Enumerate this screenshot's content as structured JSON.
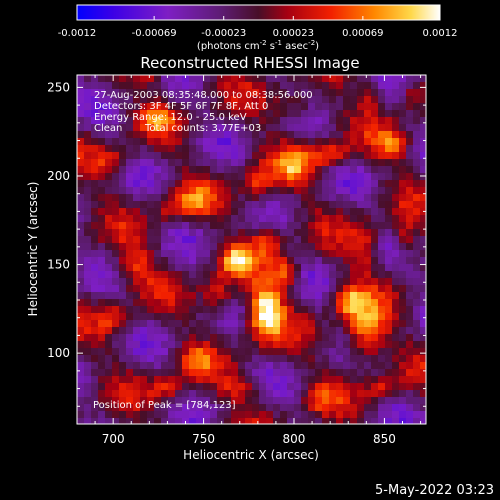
{
  "colorbar": {
    "ticks": [
      "-0.0012",
      "-0.00069",
      "-0.00023",
      "0.00023",
      "0.00069",
      "0.0012"
    ],
    "unit_label_parts": [
      "(photons cm",
      "-2",
      " s",
      "-1",
      " asec",
      "-2",
      ")"
    ],
    "colors": [
      "#0000ff",
      "#7e1ec4",
      "#5d1c72",
      "#a60012",
      "#f22000",
      "#ff8800",
      "#ffd84a",
      "#ffffff"
    ]
  },
  "chart_data": {
    "type": "heatmap",
    "title": "Reconstructed RHESSI Image",
    "xlabel": "Heliocentric X (arcsec)",
    "ylabel": "Heliocentric Y (arcsec)",
    "xlim": [
      680,
      873
    ],
    "ylim": [
      60,
      257
    ],
    "xticks": [
      700,
      750,
      800,
      850
    ],
    "yticks": [
      100,
      150,
      200,
      250
    ],
    "xtick_labels": [
      "700",
      "750",
      "800",
      "850"
    ],
    "ytick_labels": [
      "100",
      "150",
      "200",
      "250"
    ],
    "colorbar_range": [
      -0.0012,
      0.0012
    ],
    "peak": {
      "x": 784,
      "y": 123
    },
    "blobs": [
      {
        "x": 784,
        "y": 123,
        "sx": 7,
        "sy": 11,
        "amp": 1.15
      },
      {
        "x": 768,
        "y": 152,
        "sx": 6,
        "sy": 6,
        "amp": 0.75
      },
      {
        "x": 840,
        "y": 111,
        "sx": 8,
        "sy": 12,
        "amp": 0.85
      },
      {
        "x": 830,
        "y": 130,
        "sx": 6,
        "sy": 7,
        "amp": 0.7
      },
      {
        "x": 758,
        "y": 132,
        "sx": 6,
        "sy": 8,
        "amp": 0.6
      },
      {
        "x": 795,
        "y": 145,
        "sx": 6,
        "sy": 7,
        "amp": 0.6
      },
      {
        "x": 785,
        "y": 163,
        "sx": 6,
        "sy": 6,
        "amp": 0.55
      },
      {
        "x": 745,
        "y": 185,
        "sx": 7,
        "sy": 6,
        "amp": 0.55
      },
      {
        "x": 780,
        "y": 195,
        "sx": 6,
        "sy": 8,
        "amp": 0.6
      },
      {
        "x": 800,
        "y": 205,
        "sx": 7,
        "sy": 7,
        "amp": 0.55
      },
      {
        "x": 820,
        "y": 212,
        "sx": 8,
        "sy": 5,
        "amp": 0.6
      },
      {
        "x": 855,
        "y": 218,
        "sx": 7,
        "sy": 6,
        "amp": 0.55
      },
      {
        "x": 862,
        "y": 165,
        "sx": 5,
        "sy": 9,
        "amp": 0.5
      },
      {
        "x": 712,
        "y": 150,
        "sx": 8,
        "sy": 9,
        "amp": 0.5
      },
      {
        "x": 700,
        "y": 120,
        "sx": 6,
        "sy": 6,
        "amp": 0.45
      },
      {
        "x": 730,
        "y": 80,
        "sx": 7,
        "sy": 5,
        "amp": 0.5
      },
      {
        "x": 745,
        "y": 95,
        "sx": 6,
        "sy": 6,
        "amp": 0.5
      },
      {
        "x": 700,
        "y": 208,
        "sx": 8,
        "sy": 6,
        "amp": 0.45
      },
      {
        "x": 725,
        "y": 232,
        "sx": 7,
        "sy": 6,
        "amp": 0.4
      },
      {
        "x": 802,
        "y": 240,
        "sx": 9,
        "sy": 6,
        "amp": 0.45
      },
      {
        "x": 843,
        "y": 245,
        "sx": 5,
        "sy": 6,
        "amp": 0.45
      },
      {
        "x": 770,
        "y": 80,
        "sx": 8,
        "sy": 5,
        "amp": 0.45
      },
      {
        "x": 815,
        "y": 75,
        "sx": 6,
        "sy": 6,
        "amp": 0.4
      },
      {
        "x": 848,
        "y": 80,
        "sx": 6,
        "sy": 5,
        "amp": 0.45
      },
      {
        "x": 865,
        "y": 245,
        "sx": 4,
        "sy": 6,
        "amp": 0.4
      },
      {
        "x": 720,
        "y": 255,
        "sx": 6,
        "sy": 4,
        "amp": 0.35
      },
      {
        "x": 840,
        "y": 160,
        "sx": 6,
        "sy": 10,
        "amp": 0.45
      },
      {
        "x": 730,
        "y": 180,
        "sx": 5,
        "sy": 6,
        "amp": 0.35
      }
    ],
    "annotations": {
      "time_range": "27-Aug-2003 08:35:48.000 to 08:38:56.000",
      "detectors": "Detectors: 3F 4F 5F 6F 7F 8F, Att 0",
      "energy": "Energy Range: 12.0 - 25.0 keV",
      "method": "Clean",
      "counts": "Total counts: 3.77E+03",
      "peak_label": "Position of Peak = [784,123]"
    }
  },
  "footer": {
    "date": "5-May-2022 03:23"
  }
}
